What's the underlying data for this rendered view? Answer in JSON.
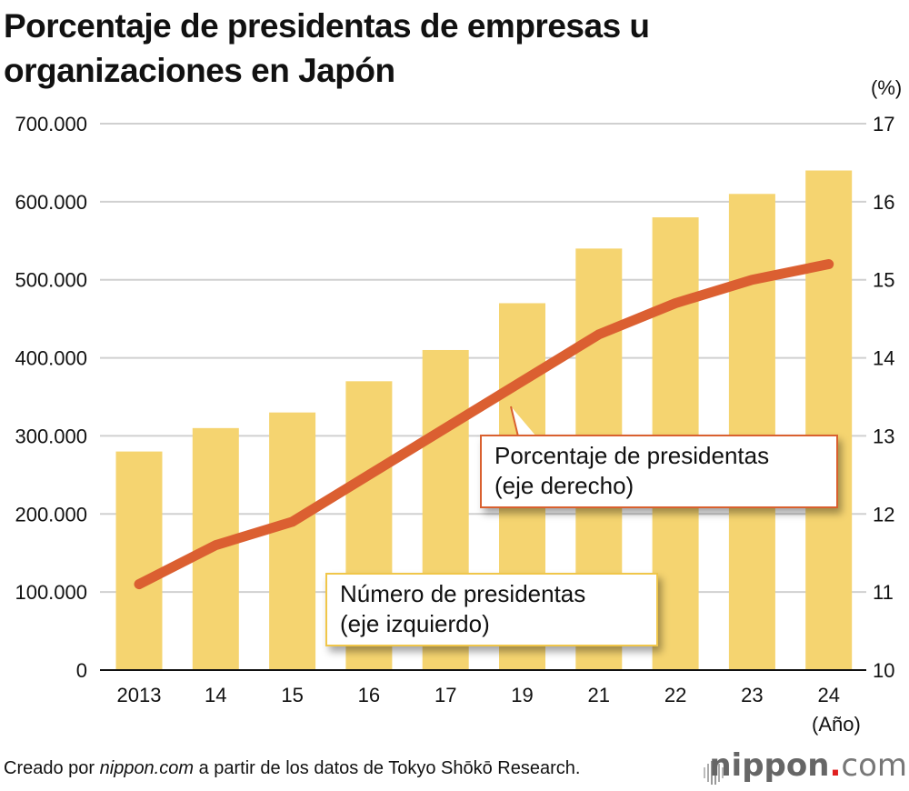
{
  "title": "Porcentaje de presidentas de empresas u organizaciones en Japón",
  "chart_data": {
    "type": "bar+line",
    "title": "Porcentaje de presidentas de empresas u organizaciones en Japón",
    "categories": [
      "2013",
      "14",
      "15",
      "16",
      "17",
      "19",
      "21",
      "22",
      "23",
      "24"
    ],
    "xlabel": "(Año)",
    "series": [
      {
        "name": "Número de presidentas (eje izquierdo)",
        "type": "bar",
        "axis": "left",
        "color": "#f5d470",
        "values": [
          280000,
          310000,
          330000,
          370000,
          410000,
          470000,
          540000,
          580000,
          610000,
          640000
        ]
      },
      {
        "name": "Porcentaje de presidentas (eje derecho)",
        "type": "line",
        "axis": "right",
        "color": "#db5f31",
        "values": [
          11.1,
          11.6,
          11.9,
          12.5,
          13.1,
          13.7,
          14.3,
          14.7,
          15.0,
          15.2
        ]
      }
    ],
    "left_axis": {
      "ylim": [
        0,
        700000
      ],
      "ticks": [
        "0",
        "100.000",
        "200.000",
        "300.000",
        "400.000",
        "500.000",
        "600.000",
        "700.000"
      ]
    },
    "right_axis": {
      "unit_label": "(%)",
      "ylim": [
        10,
        17
      ],
      "ticks": [
        "10",
        "11",
        "12",
        "13",
        "14",
        "15",
        "16",
        "17"
      ]
    },
    "grid": true,
    "annotations": [
      {
        "label_line1": "Porcentaje de presidentas",
        "label_line2": "(eje derecho)"
      },
      {
        "label_line1": "Número de presidentas",
        "label_line2": "(eje izquierdo)"
      }
    ]
  },
  "footer": {
    "prefix": "Creado por ",
    "site": "nippon.com",
    "suffix": " a partir de los datos de Tokyo Shōkō Research."
  },
  "brand": {
    "name": "nippon",
    "dot": ".",
    "tld": "com"
  }
}
